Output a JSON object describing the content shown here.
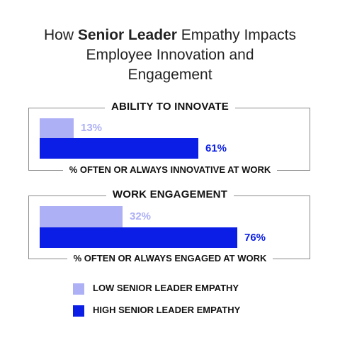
{
  "chart_data": {
    "type": "bar",
    "orientation": "horizontal",
    "title_parts": [
      {
        "line": 0,
        "text": "How ",
        "bold": false
      },
      {
        "line": 0,
        "text": "Senior Leader",
        "bold": true
      },
      {
        "line": 0,
        "text": " Empathy Impacts",
        "bold": false
      },
      {
        "line": 1,
        "text": "Employee Innovation and",
        "bold": false
      },
      {
        "line": 2,
        "text": "Engagement",
        "bold": false
      }
    ],
    "xlim": [
      0,
      100
    ],
    "grid": false,
    "legend_position": "bottom",
    "panels": [
      {
        "title": "ABILITY TO INNOVATE",
        "caption": "% OFTEN OR ALWAYS INNOVATIVE AT WORK",
        "values": [
          {
            "series": 0,
            "value": 13,
            "label": "13%"
          },
          {
            "series": 1,
            "value": 61,
            "label": "61%"
          }
        ]
      },
      {
        "title": "WORK ENGAGEMENT",
        "caption": "% OFTEN OR ALWAYS ENGAGED AT WORK",
        "values": [
          {
            "series": 0,
            "value": 32,
            "label": "32%"
          },
          {
            "series": 1,
            "value": 76,
            "label": "76%"
          }
        ]
      }
    ],
    "series": [
      {
        "name": "LOW SENIOR LEADER EMPATHY",
        "color": "#adb0f5"
      },
      {
        "name": "HIGH SENIOR LEADER EMPATHY",
        "color": "#0a1ee6"
      }
    ]
  }
}
